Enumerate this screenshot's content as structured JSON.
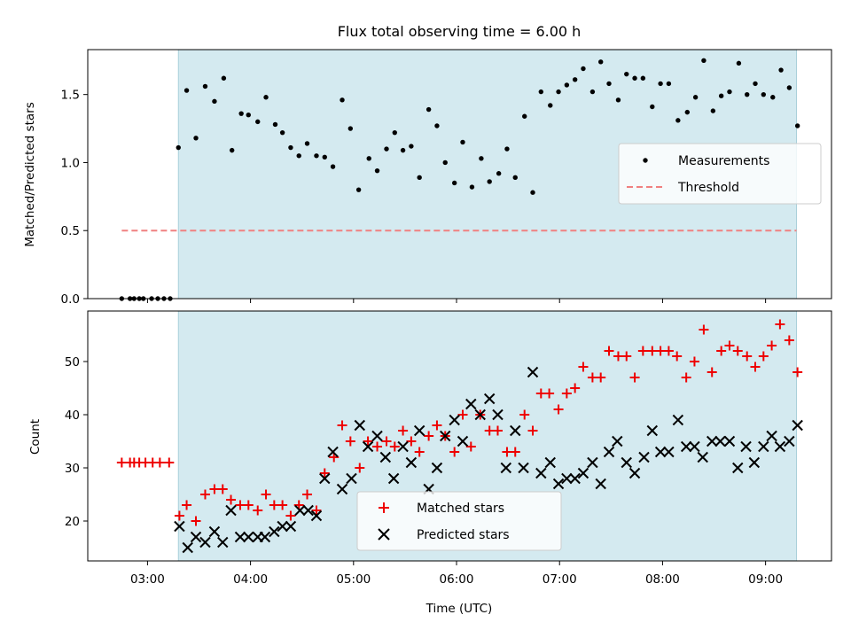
{
  "chart_data": {
    "type": "scatter",
    "title": "Flux total observing time = 6.00 h",
    "xlabel": "Time (UTC)",
    "x_tick_labels": [
      "03:00",
      "04:00",
      "05:00",
      "06:00",
      "07:00",
      "08:00",
      "09:00"
    ],
    "x_tick_hours": [
      3,
      4,
      5,
      6,
      7,
      8,
      9
    ],
    "xlim_hours": [
      2.42,
      9.64
    ],
    "observing_window_hours": [
      3.3,
      9.3
    ],
    "window_color": "#d4eaf0",
    "panels": [
      {
        "name": "ratio",
        "ylabel": "Matched/Predicted stars",
        "ylim": [
          0,
          1.83
        ],
        "y_ticks": [
          0.0,
          0.5,
          1.0,
          1.5
        ],
        "y_tick_labels": [
          "0.0",
          "0.5",
          "1.0",
          "1.5"
        ],
        "legend_position": "right",
        "threshold": {
          "name": "Threshold",
          "value": 0.5,
          "x_range_hours": [
            2.75,
            9.3
          ],
          "color": "#f08080",
          "dash": true
        },
        "series": [
          {
            "name": "Measurements",
            "marker": "dot",
            "color": "#000000",
            "points": [
              [
                2.75,
                0.0
              ],
              [
                2.83,
                0.0
              ],
              [
                2.87,
                0.0
              ],
              [
                2.92,
                0.0
              ],
              [
                2.96,
                0.0
              ],
              [
                3.04,
                0.0
              ],
              [
                3.1,
                0.0
              ],
              [
                3.16,
                0.0
              ],
              [
                3.22,
                0.0
              ],
              [
                3.3,
                1.11
              ],
              [
                3.38,
                1.53
              ],
              [
                3.47,
                1.18
              ],
              [
                3.56,
                1.56
              ],
              [
                3.65,
                1.45
              ],
              [
                3.74,
                1.62
              ],
              [
                3.82,
                1.09
              ],
              [
                3.91,
                1.36
              ],
              [
                3.98,
                1.35
              ],
              [
                4.07,
                1.3
              ],
              [
                4.15,
                1.48
              ],
              [
                4.24,
                1.28
              ],
              [
                4.31,
                1.22
              ],
              [
                4.39,
                1.11
              ],
              [
                4.47,
                1.05
              ],
              [
                4.55,
                1.14
              ],
              [
                4.64,
                1.05
              ],
              [
                4.72,
                1.04
              ],
              [
                4.8,
                0.97
              ],
              [
                4.89,
                1.46
              ],
              [
                4.97,
                1.25
              ],
              [
                5.05,
                0.8
              ],
              [
                5.15,
                1.03
              ],
              [
                5.23,
                0.94
              ],
              [
                5.32,
                1.1
              ],
              [
                5.4,
                1.22
              ],
              [
                5.48,
                1.09
              ],
              [
                5.56,
                1.12
              ],
              [
                5.64,
                0.89
              ],
              [
                5.73,
                1.39
              ],
              [
                5.81,
                1.27
              ],
              [
                5.89,
                1.0
              ],
              [
                5.98,
                0.85
              ],
              [
                6.06,
                1.15
              ],
              [
                6.15,
                0.82
              ],
              [
                6.24,
                1.03
              ],
              [
                6.32,
                0.86
              ],
              [
                6.41,
                0.92
              ],
              [
                6.49,
                1.1
              ],
              [
                6.57,
                0.89
              ],
              [
                6.66,
                1.34
              ],
              [
                6.74,
                0.78
              ],
              [
                6.82,
                1.52
              ],
              [
                6.91,
                1.42
              ],
              [
                6.99,
                1.52
              ],
              [
                7.07,
                1.57
              ],
              [
                7.15,
                1.61
              ],
              [
                7.23,
                1.69
              ],
              [
                7.32,
                1.52
              ],
              [
                7.4,
                1.74
              ],
              [
                7.48,
                1.58
              ],
              [
                7.57,
                1.46
              ],
              [
                7.65,
                1.65
              ],
              [
                7.73,
                1.62
              ],
              [
                7.81,
                1.62
              ],
              [
                7.9,
                1.41
              ],
              [
                7.98,
                1.58
              ],
              [
                8.06,
                1.58
              ],
              [
                8.15,
                1.31
              ],
              [
                8.24,
                1.37
              ],
              [
                8.32,
                1.48
              ],
              [
                8.4,
                1.75
              ],
              [
                8.49,
                1.38
              ],
              [
                8.57,
                1.49
              ],
              [
                8.65,
                1.52
              ],
              [
                8.74,
                1.73
              ],
              [
                8.82,
                1.5
              ],
              [
                8.9,
                1.58
              ],
              [
                8.98,
                1.5
              ],
              [
                9.07,
                1.48
              ],
              [
                9.15,
                1.68
              ],
              [
                9.23,
                1.55
              ],
              [
                9.31,
                1.27
              ]
            ]
          }
        ]
      },
      {
        "name": "counts",
        "ylabel": "Count",
        "ylim": [
          12.5,
          59.5
        ],
        "y_ticks": [
          20,
          30,
          40,
          50
        ],
        "y_tick_labels": [
          "20",
          "30",
          "40",
          "50"
        ],
        "legend_position": "lower center",
        "series": [
          {
            "name": "Matched stars",
            "marker": "plus",
            "color": "#ee0000",
            "points": [
              [
                2.75,
                31
              ],
              [
                2.83,
                31
              ],
              [
                2.87,
                31
              ],
              [
                2.92,
                31
              ],
              [
                2.98,
                31
              ],
              [
                3.05,
                31
              ],
              [
                3.12,
                31
              ],
              [
                3.21,
                31
              ],
              [
                3.31,
                21
              ],
              [
                3.38,
                23
              ],
              [
                3.47,
                20
              ],
              [
                3.56,
                25
              ],
              [
                3.65,
                26
              ],
              [
                3.73,
                26
              ],
              [
                3.81,
                24
              ],
              [
                3.9,
                23
              ],
              [
                3.98,
                23
              ],
              [
                4.07,
                22
              ],
              [
                4.15,
                25
              ],
              [
                4.23,
                23
              ],
              [
                4.31,
                23
              ],
              [
                4.39,
                21
              ],
              [
                4.47,
                23
              ],
              [
                4.55,
                25
              ],
              [
                4.64,
                22
              ],
              [
                4.72,
                29
              ],
              [
                4.81,
                32
              ],
              [
                4.89,
                38
              ],
              [
                4.97,
                35
              ],
              [
                5.06,
                30
              ],
              [
                5.14,
                35
              ],
              [
                5.23,
                34
              ],
              [
                5.32,
                35
              ],
              [
                5.4,
                34
              ],
              [
                5.48,
                37
              ],
              [
                5.56,
                35
              ],
              [
                5.64,
                33
              ],
              [
                5.73,
                36
              ],
              [
                5.81,
                38
              ],
              [
                5.89,
                36
              ],
              [
                5.98,
                33
              ],
              [
                6.06,
                40
              ],
              [
                6.14,
                34
              ],
              [
                6.23,
                40
              ],
              [
                6.32,
                37
              ],
              [
                6.4,
                37
              ],
              [
                6.49,
                33
              ],
              [
                6.57,
                33
              ],
              [
                6.66,
                40
              ],
              [
                6.74,
                37
              ],
              [
                6.82,
                44
              ],
              [
                6.9,
                44
              ],
              [
                6.99,
                41
              ],
              [
                7.07,
                44
              ],
              [
                7.15,
                45
              ],
              [
                7.23,
                49
              ],
              [
                7.32,
                47
              ],
              [
                7.4,
                47
              ],
              [
                7.48,
                52
              ],
              [
                7.57,
                51
              ],
              [
                7.65,
                51
              ],
              [
                7.73,
                47
              ],
              [
                7.81,
                52
              ],
              [
                7.9,
                52
              ],
              [
                7.98,
                52
              ],
              [
                8.06,
                52
              ],
              [
                8.14,
                51
              ],
              [
                8.23,
                47
              ],
              [
                8.31,
                50
              ],
              [
                8.4,
                56
              ],
              [
                8.48,
                48
              ],
              [
                8.57,
                52
              ],
              [
                8.65,
                53
              ],
              [
                8.73,
                52
              ],
              [
                8.82,
                51
              ],
              [
                8.9,
                49
              ],
              [
                8.98,
                51
              ],
              [
                9.06,
                53
              ],
              [
                9.14,
                57
              ],
              [
                9.23,
                54
              ],
              [
                9.31,
                48
              ]
            ]
          },
          {
            "name": "Predicted stars",
            "marker": "x",
            "color": "#000000",
            "points": [
              [
                3.31,
                19
              ],
              [
                3.39,
                15
              ],
              [
                3.47,
                17
              ],
              [
                3.56,
                16
              ],
              [
                3.65,
                18
              ],
              [
                3.73,
                16
              ],
              [
                3.81,
                22
              ],
              [
                3.9,
                17
              ],
              [
                3.98,
                17
              ],
              [
                4.07,
                17
              ],
              [
                4.14,
                17
              ],
              [
                4.23,
                18
              ],
              [
                4.31,
                19
              ],
              [
                4.39,
                19
              ],
              [
                4.48,
                22
              ],
              [
                4.56,
                22
              ],
              [
                4.64,
                21
              ],
              [
                4.72,
                28
              ],
              [
                4.8,
                33
              ],
              [
                4.89,
                26
              ],
              [
                4.98,
                28
              ],
              [
                5.06,
                38
              ],
              [
                5.14,
                34
              ],
              [
                5.23,
                36
              ],
              [
                5.31,
                32
              ],
              [
                5.39,
                28
              ],
              [
                5.48,
                34
              ],
              [
                5.56,
                31
              ],
              [
                5.64,
                37
              ],
              [
                5.73,
                26
              ],
              [
                5.81,
                30
              ],
              [
                5.89,
                36
              ],
              [
                5.98,
                39
              ],
              [
                6.06,
                35
              ],
              [
                6.14,
                42
              ],
              [
                6.23,
                40
              ],
              [
                6.32,
                43
              ],
              [
                6.4,
                40
              ],
              [
                6.48,
                30
              ],
              [
                6.57,
                37
              ],
              [
                6.65,
                30
              ],
              [
                6.74,
                48
              ],
              [
                6.82,
                29
              ],
              [
                6.91,
                31
              ],
              [
                6.99,
                27
              ],
              [
                7.07,
                28
              ],
              [
                7.15,
                28
              ],
              [
                7.23,
                29
              ],
              [
                7.32,
                31
              ],
              [
                7.4,
                27
              ],
              [
                7.48,
                33
              ],
              [
                7.56,
                35
              ],
              [
                7.65,
                31
              ],
              [
                7.73,
                29
              ],
              [
                7.82,
                32
              ],
              [
                7.9,
                37
              ],
              [
                7.98,
                33
              ],
              [
                8.06,
                33
              ],
              [
                8.15,
                39
              ],
              [
                8.23,
                34
              ],
              [
                8.31,
                34
              ],
              [
                8.39,
                32
              ],
              [
                8.48,
                35
              ],
              [
                8.56,
                35
              ],
              [
                8.65,
                35
              ],
              [
                8.73,
                30
              ],
              [
                8.81,
                34
              ],
              [
                8.89,
                31
              ],
              [
                8.98,
                34
              ],
              [
                9.06,
                36
              ],
              [
                9.14,
                34
              ],
              [
                9.23,
                35
              ],
              [
                9.31,
                38
              ]
            ]
          }
        ]
      }
    ]
  }
}
